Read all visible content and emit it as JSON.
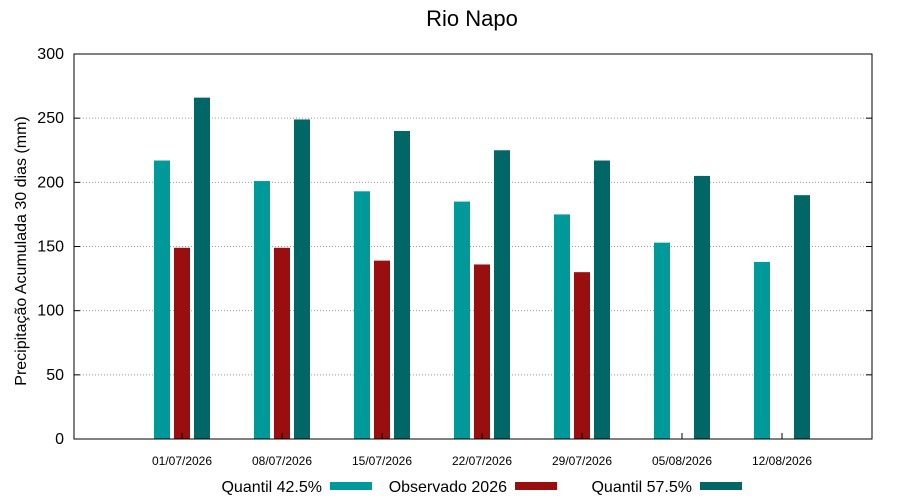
{
  "chart_data": {
    "type": "bar",
    "title": "Rio Napo",
    "xlabel": "",
    "ylabel": "Precipitação Acumulada 30 dias (mm)",
    "ylim": [
      0,
      300
    ],
    "yticks": [
      0,
      50,
      100,
      150,
      200,
      250,
      300
    ],
    "grid": true,
    "legend_position": "bottom",
    "categories": [
      "01/07/2026",
      "08/07/2026",
      "15/07/2026",
      "22/07/2026",
      "29/07/2026",
      "05/08/2026",
      "12/08/2026"
    ],
    "series": [
      {
        "name": "Quantil 42.5%",
        "color": "#009999",
        "values": [
          217,
          201,
          193,
          185,
          175,
          153,
          138
        ]
      },
      {
        "name": "Observado 2026",
        "color": "#990f0f",
        "values": [
          149,
          149,
          139,
          136,
          130,
          null,
          null
        ]
      },
      {
        "name": "Quantil 57.5%",
        "color": "#006666",
        "values": [
          266,
          249,
          240,
          225,
          217,
          205,
          190
        ]
      }
    ]
  }
}
